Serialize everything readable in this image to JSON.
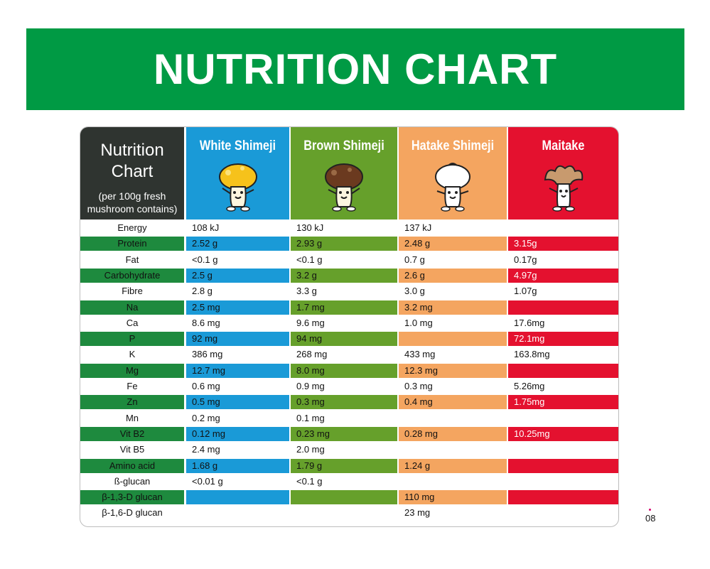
{
  "banner_title": "NUTRITION CHART",
  "header": {
    "title_line1": "Nutrition",
    "title_line2": "Chart",
    "subtitle_line1": "(per 100g fresh",
    "subtitle_line2": "mushroom contains)"
  },
  "columns": [
    {
      "name": "White Shimeji",
      "color": "#1a9ad7",
      "icon": "white-shimeji-mascot-icon"
    },
    {
      "name": "Brown Shimeji",
      "color": "#66a02b",
      "icon": "brown-shimeji-mascot-icon"
    },
    {
      "name": "Hatake Shimeji",
      "color": "#f4a560",
      "icon": "hatake-shimeji-mascot-icon"
    },
    {
      "name": "Maitake",
      "color": "#e4112f",
      "icon": "maitake-mascot-icon"
    }
  ],
  "label_band_color": "#1e8a3e",
  "rows": [
    {
      "label": "Energy",
      "values": [
        "108 kJ",
        "130 kJ",
        "137 kJ",
        ""
      ]
    },
    {
      "label": "Protein",
      "values": [
        "2.52 g",
        "2.93 g",
        "2.48 g",
        "3.15g"
      ]
    },
    {
      "label": "Fat",
      "values": [
        "<0.1 g",
        "<0.1 g",
        "0.7 g",
        "0.17g"
      ]
    },
    {
      "label": "Carbohydrate",
      "values": [
        "2.5 g",
        "3.2 g",
        "2.6 g",
        "4.97g"
      ]
    },
    {
      "label": "Fibre",
      "values": [
        "2.8 g",
        "3.3 g",
        "3.0 g",
        "1.07g"
      ]
    },
    {
      "label": "Na",
      "values": [
        "2.5 mg",
        "1.7 mg",
        "3.2 mg",
        ""
      ]
    },
    {
      "label": "Ca",
      "values": [
        "8.6 mg",
        "9.6 mg",
        "1.0 mg",
        "17.6mg"
      ]
    },
    {
      "label": "P",
      "values": [
        "92 mg",
        "94 mg",
        "",
        "72.1mg"
      ]
    },
    {
      "label": "K",
      "values": [
        "386 mg",
        "268 mg",
        "433 mg",
        "163.8mg"
      ]
    },
    {
      "label": "Mg",
      "values": [
        "12.7 mg",
        "8.0 mg",
        "12.3 mg",
        ""
      ]
    },
    {
      "label": "Fe",
      "values": [
        "0.6 mg",
        "0.9 mg",
        "0.3 mg",
        "5.26mg"
      ]
    },
    {
      "label": "Zn",
      "values": [
        "0.5 mg",
        "0.3 mg",
        "0.4 mg",
        "1.75mg"
      ]
    },
    {
      "label": "Mn",
      "values": [
        "0.2 mg",
        "0.1 mg",
        "",
        ""
      ]
    },
    {
      "label": "Vit B2",
      "values": [
        "0.12 mg",
        "0.23 mg",
        "0.28 mg",
        "10.25mg"
      ]
    },
    {
      "label": "Vit B5",
      "values": [
        "2.4 mg",
        "2.0 mg",
        "",
        ""
      ]
    },
    {
      "label": "Amino acid",
      "values": [
        "1.68 g",
        "1.79 g",
        "1.24 g",
        ""
      ]
    },
    {
      "label": "ß-glucan",
      "values": [
        "<0.01 g",
        "<0.1 g",
        "",
        ""
      ]
    },
    {
      "label": "β-1,3-D glucan",
      "values": [
        "",
        "",
        "110 mg",
        ""
      ]
    },
    {
      "label": "β-1,6-D glucan",
      "values": [
        "",
        "",
        "23 mg",
        ""
      ]
    }
  ],
  "page_number": "08"
}
